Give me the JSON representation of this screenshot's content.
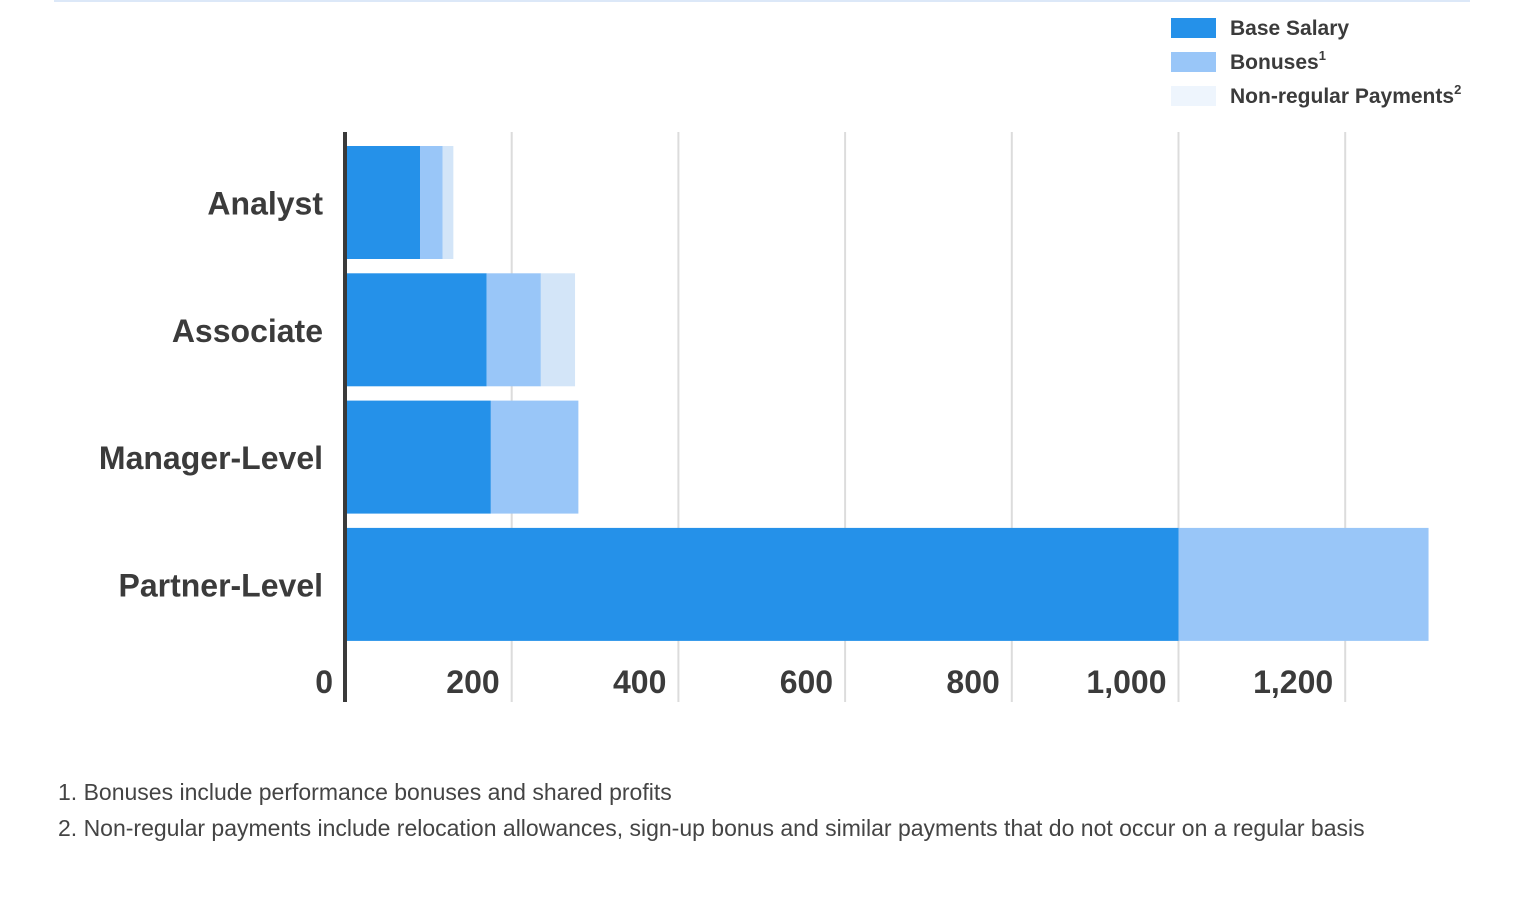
{
  "chart_data": {
    "type": "bar",
    "orientation": "horizontal",
    "stacked": true,
    "categories": [
      "Analyst",
      "Associate",
      "Manager-Level",
      "Partner-Level"
    ],
    "series": [
      {
        "name": "Base Salary",
        "values": [
          90,
          170,
          175,
          1000
        ],
        "color": "#2591e9"
      },
      {
        "name": "Bonuses",
        "legend_sup": "1",
        "values": [
          27,
          65,
          105,
          300
        ],
        "color": "#99c6f8"
      },
      {
        "name": "Non-regular Payments",
        "legend_sup": "2",
        "values": [
          13,
          41,
          0,
          0
        ],
        "color": "#d3e5f8"
      }
    ],
    "x_ticks": [
      {
        "value": 0,
        "label": "0"
      },
      {
        "value": 200,
        "label": "200"
      },
      {
        "value": 400,
        "label": "400"
      },
      {
        "value": 600,
        "label": "600"
      },
      {
        "value": 800,
        "label": "800"
      },
      {
        "value": 1000,
        "label": "1,000"
      },
      {
        "value": 1200,
        "label": "1,200"
      }
    ],
    "xlim": [
      0,
      1300
    ],
    "grid": true,
    "legend_position": "top-right",
    "legend_swatch_colors": [
      "#2591e9",
      "#99c6f8",
      "#eef5fd"
    ]
  },
  "footnotes": [
    "1. Bonuses include performance bonuses and shared profits",
    "2. Non-regular payments include relocation allowances, sign-up bonus and similar payments that do not occur on a regular basis"
  ]
}
